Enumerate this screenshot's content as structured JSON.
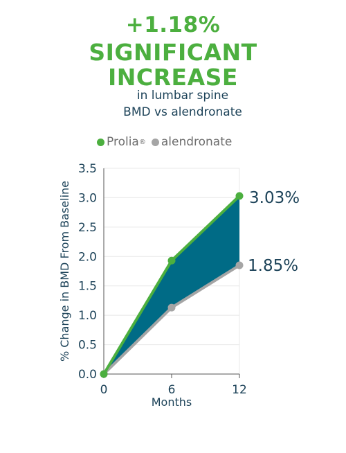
{
  "headline": {
    "line1": "+1.18%",
    "line2": "SIGNIFICANT",
    "line3": "INCREASE",
    "sub1": "in lumbar spine",
    "sub2": "BMD vs alendronate"
  },
  "legend": {
    "prolia": "Prolia",
    "prolia_mark": "®",
    "alendronate": "alendronate"
  },
  "colors": {
    "prolia": "#4caf3f",
    "alendronate": "#a5a5a5",
    "fill": "#006b86",
    "text": "#1d4359",
    "grid": "#e8e8e8"
  },
  "chart_data": {
    "type": "line",
    "xlabel": "Months",
    "ylabel": "% Change in BMD From Baseline",
    "x": [
      0,
      6,
      12
    ],
    "ylim": [
      0,
      3.5
    ],
    "yticks": [
      "0.0",
      "0.5",
      "1.0",
      "1.5",
      "2.0",
      "2.5",
      "3.0",
      "3.5"
    ],
    "xticks": [
      "0",
      "6",
      "12"
    ],
    "grid": true,
    "series": [
      {
        "name": "Prolia",
        "values": [
          0,
          1.93,
          3.03
        ],
        "end_label": "3.03%"
      },
      {
        "name": "alendronate",
        "values": [
          0,
          1.13,
          1.85
        ],
        "end_label": "1.85%"
      }
    ],
    "shaded_area_between_series": true
  }
}
